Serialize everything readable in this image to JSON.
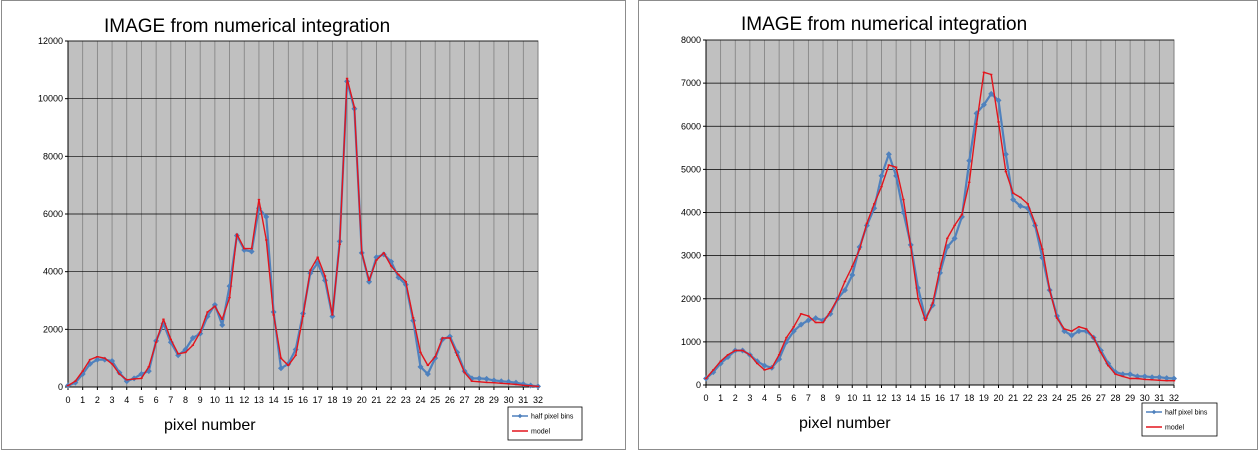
{
  "chart_data": [
    {
      "type": "line",
      "title": "IMAGE from numerical integration",
      "xlabel": "pixel  number",
      "ylabel": "",
      "xlim": [
        0,
        32
      ],
      "ylim": [
        0,
        12000
      ],
      "x_ticks": [
        0,
        1,
        2,
        3,
        4,
        5,
        6,
        7,
        8,
        9,
        10,
        11,
        12,
        13,
        14,
        15,
        16,
        17,
        18,
        19,
        20,
        21,
        22,
        23,
        24,
        25,
        26,
        27,
        28,
        29,
        30,
        31,
        32
      ],
      "y_ticks": [
        0,
        2000,
        4000,
        6000,
        8000,
        10000,
        12000
      ],
      "grid": true,
      "legend_position": "bottom-right",
      "series": [
        {
          "name": "half pixel bins",
          "color": "#4f81bd",
          "marker": "diamond",
          "x": [
            0,
            0.5,
            1,
            1.5,
            2,
            2.5,
            3,
            3.5,
            4,
            4.5,
            5,
            5.5,
            6,
            6.5,
            7,
            7.5,
            8,
            8.5,
            9,
            9.5,
            10,
            10.5,
            11,
            11.5,
            12,
            12.5,
            13,
            13.5,
            14,
            14.5,
            15,
            15.5,
            16,
            16.5,
            17,
            17.5,
            18,
            18.5,
            19,
            19.5,
            20,
            20.5,
            21,
            21.5,
            22,
            22.5,
            23,
            23.5,
            24,
            24.5,
            25,
            25.5,
            26,
            26.5,
            27,
            27.5,
            28,
            28.5,
            29,
            29.5,
            30,
            30.5,
            31,
            31.5,
            32
          ],
          "y": [
            50,
            150,
            450,
            800,
            950,
            950,
            900,
            500,
            200,
            300,
            450,
            550,
            1600,
            2200,
            1550,
            1100,
            1300,
            1700,
            1850,
            2450,
            2850,
            2150,
            3500,
            5250,
            4750,
            4700,
            6200,
            5900,
            2600,
            650,
            800,
            1300,
            2550,
            3950,
            4300,
            3700,
            2450,
            5050,
            10600,
            9650,
            4650,
            3650,
            4500,
            4600,
            4350,
            3800,
            3550,
            2300,
            700,
            450,
            1000,
            1650,
            1750,
            1200,
            550,
            300,
            300,
            280,
            230,
            200,
            180,
            150,
            100,
            50,
            20
          ]
        },
        {
          "name": "model",
          "color": "#e3141c",
          "marker": "dash",
          "x": [
            0,
            0.5,
            1,
            1.5,
            2,
            2.5,
            3,
            3.5,
            4,
            4.5,
            5,
            5.5,
            6,
            6.5,
            7,
            7.5,
            8,
            8.5,
            9,
            9.5,
            10,
            10.5,
            11,
            11.5,
            12,
            12.5,
            13,
            13.5,
            14,
            14.5,
            15,
            15.5,
            16,
            16.5,
            17,
            17.5,
            18,
            18.5,
            19,
            19.5,
            20,
            20.5,
            21,
            21.5,
            22,
            22.5,
            23,
            23.5,
            24,
            24.5,
            25,
            25.5,
            26,
            26.5,
            27,
            27.5,
            28,
            28.5,
            29,
            29.5,
            30,
            30.5,
            31,
            31.5,
            32
          ],
          "y": [
            50,
            200,
            550,
            950,
            1050,
            1000,
            800,
            450,
            250,
            280,
            300,
            700,
            1550,
            2350,
            1650,
            1150,
            1200,
            1450,
            1900,
            2600,
            2800,
            2350,
            3100,
            5300,
            4800,
            4800,
            6500,
            5100,
            2500,
            1000,
            750,
            1100,
            2450,
            4050,
            4500,
            3850,
            2500,
            4950,
            10700,
            9700,
            4650,
            3700,
            4400,
            4650,
            4200,
            3900,
            3650,
            2400,
            1200,
            750,
            1050,
            1700,
            1700,
            1100,
            500,
            200,
            180,
            160,
            150,
            130,
            110,
            90,
            60,
            40,
            20
          ]
        }
      ]
    },
    {
      "type": "line",
      "title": "IMAGE from numerical integration",
      "xlabel": "pixel  number",
      "ylabel": "",
      "xlim": [
        0,
        32
      ],
      "ylim": [
        0,
        8000
      ],
      "x_ticks": [
        0,
        1,
        2,
        3,
        4,
        5,
        6,
        7,
        8,
        9,
        10,
        11,
        12,
        13,
        14,
        15,
        16,
        17,
        18,
        19,
        20,
        21,
        22,
        23,
        24,
        25,
        26,
        27,
        28,
        29,
        30,
        31,
        32
      ],
      "y_ticks": [
        0,
        1000,
        2000,
        3000,
        4000,
        5000,
        6000,
        7000,
        8000
      ],
      "grid": true,
      "legend_position": "bottom-right",
      "series": [
        {
          "name": "half pixel bins",
          "color": "#4f81bd",
          "marker": "diamond",
          "x": [
            0,
            0.5,
            1,
            1.5,
            2,
            2.5,
            3,
            3.5,
            4,
            4.5,
            5,
            5.5,
            6,
            6.5,
            7,
            7.5,
            8,
            8.5,
            9,
            9.5,
            10,
            10.5,
            11,
            11.5,
            12,
            12.5,
            13,
            13.5,
            14,
            14.5,
            15,
            15.5,
            16,
            16.5,
            17,
            17.5,
            18,
            18.5,
            19,
            19.5,
            20,
            20.5,
            21,
            21.5,
            22,
            22.5,
            23,
            23.5,
            24,
            24.5,
            25,
            25.5,
            26,
            26.5,
            27,
            27.5,
            28,
            28.5,
            29,
            29.5,
            30,
            30.5,
            31,
            31.5,
            32
          ],
          "y": [
            150,
            300,
            500,
            650,
            800,
            800,
            700,
            550,
            450,
            400,
            600,
            1000,
            1250,
            1400,
            1500,
            1550,
            1500,
            1650,
            2000,
            2200,
            2550,
            3200,
            3700,
            4100,
            4850,
            5350,
            4850,
            4000,
            3250,
            2250,
            1550,
            1850,
            2600,
            3200,
            3400,
            3900,
            5200,
            6300,
            6500,
            6750,
            6600,
            5350,
            4300,
            4150,
            4100,
            3700,
            2950,
            2200,
            1600,
            1250,
            1150,
            1250,
            1250,
            1100,
            800,
            500,
            300,
            250,
            250,
            200,
            200,
            180,
            180,
            160,
            150
          ]
        },
        {
          "name": "model",
          "color": "#e3141c",
          "marker": "dash",
          "x": [
            0,
            0.5,
            1,
            1.5,
            2,
            2.5,
            3,
            3.5,
            4,
            4.5,
            5,
            5.5,
            6,
            6.5,
            7,
            7.5,
            8,
            8.5,
            9,
            9.5,
            10,
            10.5,
            11,
            11.5,
            12,
            12.5,
            13,
            13.5,
            14,
            14.5,
            15,
            15.5,
            16,
            16.5,
            17,
            17.5,
            18,
            18.5,
            19,
            19.5,
            20,
            20.5,
            21,
            21.5,
            22,
            22.5,
            23,
            23.5,
            24,
            24.5,
            25,
            25.5,
            26,
            26.5,
            27,
            27.5,
            28,
            28.5,
            29,
            29.5,
            30,
            30.5,
            31,
            31.5,
            32
          ],
          "y": [
            150,
            350,
            550,
            700,
            800,
            800,
            700,
            500,
            350,
            400,
            700,
            1100,
            1350,
            1650,
            1600,
            1450,
            1450,
            1700,
            2000,
            2400,
            2750,
            3150,
            3750,
            4200,
            4600,
            5100,
            5050,
            4300,
            3200,
            2000,
            1500,
            1900,
            2700,
            3400,
            3700,
            3950,
            4700,
            6050,
            7250,
            7200,
            6100,
            4950,
            4450,
            4350,
            4200,
            3750,
            3150,
            2200,
            1550,
            1300,
            1250,
            1350,
            1300,
            1100,
            750,
            450,
            250,
            200,
            150,
            150,
            130,
            120,
            110,
            100,
            100
          ]
        }
      ]
    }
  ]
}
